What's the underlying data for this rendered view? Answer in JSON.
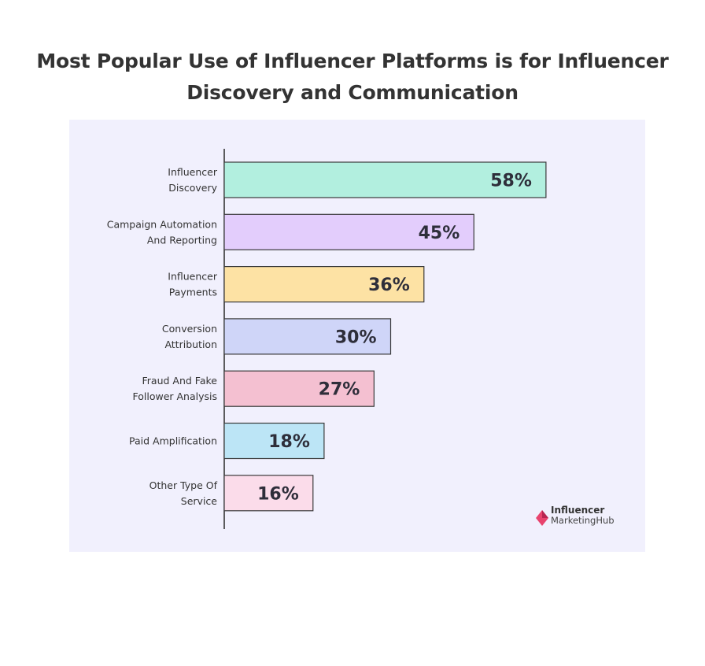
{
  "title": "Most Popular Use of Influencer Platforms is for Influencer Discovery and Communication",
  "logo": {
    "line1": "Influencer",
    "line2": "MarketingHub",
    "icon": "pink-diamond-logo-icon"
  },
  "chart_data": {
    "type": "bar",
    "orientation": "horizontal",
    "title": "Most Popular Use of Influencer Platforms is for Influencer Discovery and Communication",
    "xlabel": "",
    "ylabel": "",
    "xlim": [
      0,
      70
    ],
    "grid": false,
    "legend": "none",
    "categories": [
      [
        "Influencer",
        "Discovery"
      ],
      [
        "Campaign Automation",
        "And Reporting"
      ],
      [
        "Influencer",
        "Payments"
      ],
      [
        "Conversion",
        "Attribution"
      ],
      [
        "Fraud And Fake",
        "Follower Analysis"
      ],
      [
        "Paid Amplification"
      ],
      [
        "Other Type Of",
        "Service"
      ]
    ],
    "values": [
      58,
      45,
      36,
      30,
      27,
      18,
      16
    ],
    "value_labels": [
      "58%",
      "45%",
      "36%",
      "30%",
      "27%",
      "18%",
      "16%"
    ],
    "colors": [
      "#b2efdf",
      "#e3cdfc",
      "#fde2a4",
      "#cfd5f8",
      "#f4c0d1",
      "#bce5f6",
      "#fbdcea"
    ],
    "outline_color": "#3a3a3a"
  }
}
